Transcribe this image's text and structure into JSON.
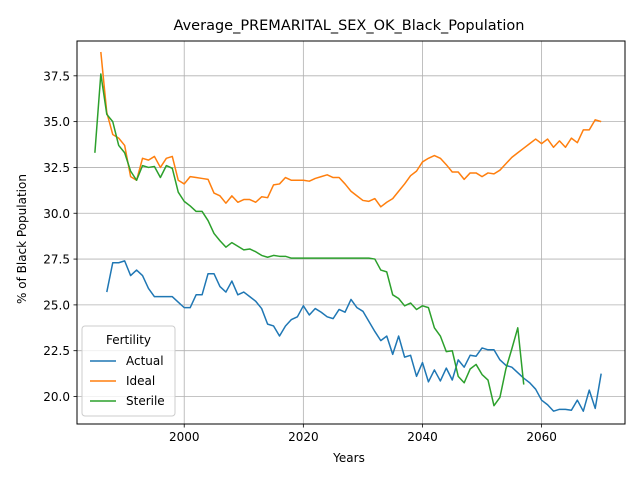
{
  "chart_data": {
    "type": "line",
    "title": "Average_PREMARITAL_SEX_OK_Black_Population",
    "xlabel": "Years",
    "ylabel": "% of Black Population",
    "xlim": [
      1982,
      2074
    ],
    "ylim": [
      18.5,
      39.4
    ],
    "xticks": [
      2000,
      2020,
      2040,
      2060
    ],
    "yticks": [
      20.0,
      22.5,
      25.0,
      27.5,
      30.0,
      32.5,
      35.0,
      37.5
    ],
    "grid": true,
    "legend": {
      "title": "Fertility",
      "placement": "lower-left"
    },
    "series": [
      {
        "name": "Actual",
        "color": "#1f77b4",
        "points": [
          [
            1987,
            25.7
          ],
          [
            1988,
            27.3
          ],
          [
            1989,
            27.3
          ],
          [
            1990,
            27.4
          ],
          [
            1991,
            26.6
          ],
          [
            1992,
            26.9
          ],
          [
            1993,
            26.6
          ],
          [
            1994,
            25.9
          ],
          [
            1995,
            25.45
          ],
          [
            1996,
            25.45
          ],
          [
            1997,
            25.45
          ],
          [
            1998,
            25.45
          ],
          [
            1999,
            25.15
          ],
          [
            2000,
            24.85
          ],
          [
            2001,
            24.85
          ],
          [
            2002,
            25.55
          ],
          [
            2003,
            25.55
          ],
          [
            2004,
            26.7
          ],
          [
            2005,
            26.7
          ],
          [
            2006,
            26.0
          ],
          [
            2007,
            25.7
          ],
          [
            2008,
            26.3
          ],
          [
            2009,
            25.55
          ],
          [
            2010,
            25.7
          ],
          [
            2011,
            25.45
          ],
          [
            2012,
            25.2
          ],
          [
            2013,
            24.8
          ],
          [
            2014,
            23.95
          ],
          [
            2015,
            23.85
          ],
          [
            2016,
            23.3
          ],
          [
            2017,
            23.85
          ],
          [
            2018,
            24.2
          ],
          [
            2019,
            24.35
          ],
          [
            2020,
            24.95
          ],
          [
            2021,
            24.45
          ],
          [
            2022,
            24.8
          ],
          [
            2023,
            24.6
          ],
          [
            2024,
            24.35
          ],
          [
            2025,
            24.25
          ],
          [
            2026,
            24.75
          ],
          [
            2027,
            24.6
          ],
          [
            2028,
            25.3
          ],
          [
            2029,
            24.85
          ],
          [
            2030,
            24.65
          ],
          [
            2031,
            24.1
          ],
          [
            2032,
            23.55
          ],
          [
            2033,
            23.05
          ],
          [
            2034,
            23.3
          ],
          [
            2035,
            22.3
          ],
          [
            2036,
            23.3
          ],
          [
            2037,
            22.15
          ],
          [
            2038,
            22.25
          ],
          [
            2039,
            21.1
          ],
          [
            2040,
            21.85
          ],
          [
            2041,
            20.8
          ],
          [
            2042,
            21.45
          ],
          [
            2043,
            20.85
          ],
          [
            2044,
            21.55
          ],
          [
            2045,
            20.9
          ],
          [
            2046,
            22.0
          ],
          [
            2047,
            21.6
          ],
          [
            2048,
            22.25
          ],
          [
            2049,
            22.2
          ],
          [
            2050,
            22.65
          ],
          [
            2051,
            22.55
          ],
          [
            2052,
            22.55
          ],
          [
            2053,
            22.0
          ],
          [
            2054,
            21.7
          ],
          [
            2055,
            21.6
          ],
          [
            2056,
            21.3
          ],
          [
            2057,
            21.0
          ],
          [
            2058,
            20.75
          ],
          [
            2059,
            20.4
          ],
          [
            2060,
            19.8
          ],
          [
            2061,
            19.55
          ],
          [
            2062,
            19.2
          ],
          [
            2063,
            19.3
          ],
          [
            2064,
            19.3
          ],
          [
            2065,
            19.25
          ],
          [
            2066,
            19.8
          ],
          [
            2067,
            19.2
          ],
          [
            2068,
            20.35
          ],
          [
            2069,
            19.35
          ],
          [
            2070,
            21.25
          ]
        ]
      },
      {
        "name": "Ideal",
        "color": "#ff7f0e",
        "points": [
          [
            1986,
            38.8
          ],
          [
            1987,
            35.5
          ],
          [
            1988,
            34.3
          ],
          [
            1989,
            34.1
          ],
          [
            1990,
            33.7
          ],
          [
            1991,
            32.0
          ],
          [
            1992,
            31.8
          ],
          [
            1993,
            33.0
          ],
          [
            1994,
            32.9
          ],
          [
            1995,
            33.1
          ],
          [
            1996,
            32.5
          ],
          [
            1997,
            33.0
          ],
          [
            1998,
            33.1
          ],
          [
            1999,
            31.8
          ],
          [
            2000,
            31.6
          ],
          [
            2001,
            32.0
          ],
          [
            2002,
            31.95
          ],
          [
            2003,
            31.9
          ],
          [
            2004,
            31.85
          ],
          [
            2005,
            31.1
          ],
          [
            2006,
            30.95
          ],
          [
            2007,
            30.55
          ],
          [
            2008,
            30.95
          ],
          [
            2009,
            30.6
          ],
          [
            2010,
            30.75
          ],
          [
            2011,
            30.75
          ],
          [
            2012,
            30.6
          ],
          [
            2013,
            30.9
          ],
          [
            2014,
            30.85
          ],
          [
            2015,
            31.55
          ],
          [
            2016,
            31.6
          ],
          [
            2017,
            31.95
          ],
          [
            2018,
            31.8
          ],
          [
            2019,
            31.8
          ],
          [
            2020,
            31.8
          ],
          [
            2021,
            31.75
          ],
          [
            2022,
            31.9
          ],
          [
            2023,
            32.0
          ],
          [
            2024,
            32.1
          ],
          [
            2025,
            31.95
          ],
          [
            2026,
            31.95
          ],
          [
            2027,
            31.6
          ],
          [
            2028,
            31.2
          ],
          [
            2029,
            30.95
          ],
          [
            2030,
            30.7
          ],
          [
            2031,
            30.65
          ],
          [
            2032,
            30.8
          ],
          [
            2033,
            30.35
          ],
          [
            2034,
            30.6
          ],
          [
            2035,
            30.8
          ],
          [
            2036,
            31.2
          ],
          [
            2037,
            31.6
          ],
          [
            2038,
            32.05
          ],
          [
            2039,
            32.3
          ],
          [
            2040,
            32.8
          ],
          [
            2041,
            33.0
          ],
          [
            2042,
            33.15
          ],
          [
            2043,
            33.0
          ],
          [
            2044,
            32.65
          ],
          [
            2045,
            32.25
          ],
          [
            2046,
            32.25
          ],
          [
            2047,
            31.85
          ],
          [
            2048,
            32.2
          ],
          [
            2049,
            32.2
          ],
          [
            2050,
            32.0
          ],
          [
            2051,
            32.2
          ],
          [
            2052,
            32.15
          ],
          [
            2053,
            32.35
          ],
          [
            2054,
            32.7
          ],
          [
            2055,
            33.05
          ],
          [
            2056,
            33.3
          ],
          [
            2057,
            33.55
          ],
          [
            2058,
            33.8
          ],
          [
            2059,
            34.05
          ],
          [
            2060,
            33.8
          ],
          [
            2061,
            34.05
          ],
          [
            2062,
            33.6
          ],
          [
            2063,
            33.95
          ],
          [
            2064,
            33.6
          ],
          [
            2065,
            34.1
          ],
          [
            2066,
            33.85
          ],
          [
            2067,
            34.55
          ],
          [
            2068,
            34.55
          ],
          [
            2069,
            35.1
          ],
          [
            2070,
            35.0
          ]
        ]
      },
      {
        "name": "Sterile",
        "color": "#2ca02c",
        "points": [
          [
            1985,
            33.3
          ],
          [
            1986,
            37.6
          ],
          [
            1987,
            35.4
          ],
          [
            1988,
            35.0
          ],
          [
            1989,
            33.7
          ],
          [
            1990,
            33.3
          ],
          [
            1991,
            32.3
          ],
          [
            1992,
            31.8
          ],
          [
            1993,
            32.6
          ],
          [
            1994,
            32.5
          ],
          [
            1995,
            32.55
          ],
          [
            1996,
            31.95
          ],
          [
            1997,
            32.6
          ],
          [
            1998,
            32.45
          ],
          [
            1999,
            31.15
          ],
          [
            2000,
            30.65
          ],
          [
            2001,
            30.4
          ],
          [
            2002,
            30.1
          ],
          [
            2003,
            30.1
          ],
          [
            2004,
            29.6
          ],
          [
            2005,
            28.9
          ],
          [
            2006,
            28.5
          ],
          [
            2007,
            28.15
          ],
          [
            2008,
            28.4
          ],
          [
            2009,
            28.2
          ],
          [
            2010,
            28.0
          ],
          [
            2011,
            28.05
          ],
          [
            2012,
            27.9
          ],
          [
            2013,
            27.7
          ],
          [
            2014,
            27.6
          ],
          [
            2015,
            27.7
          ],
          [
            2016,
            27.65
          ],
          [
            2017,
            27.65
          ],
          [
            2018,
            27.55
          ],
          [
            2019,
            27.55
          ],
          [
            2020,
            27.55
          ],
          [
            2021,
            27.55
          ],
          [
            2022,
            27.55
          ],
          [
            2023,
            27.55
          ],
          [
            2024,
            27.55
          ],
          [
            2025,
            27.55
          ],
          [
            2026,
            27.55
          ],
          [
            2027,
            27.55
          ],
          [
            2028,
            27.55
          ],
          [
            2029,
            27.55
          ],
          [
            2030,
            27.55
          ],
          [
            2031,
            27.55
          ],
          [
            2032,
            27.5
          ],
          [
            2033,
            26.9
          ],
          [
            2034,
            26.8
          ],
          [
            2035,
            25.55
          ],
          [
            2036,
            25.35
          ],
          [
            2037,
            24.95
          ],
          [
            2038,
            25.1
          ],
          [
            2039,
            24.75
          ],
          [
            2040,
            24.95
          ],
          [
            2041,
            24.85
          ],
          [
            2042,
            23.75
          ],
          [
            2043,
            23.3
          ],
          [
            2044,
            22.45
          ],
          [
            2045,
            22.5
          ],
          [
            2046,
            21.1
          ],
          [
            2047,
            20.75
          ],
          [
            2048,
            21.5
          ],
          [
            2049,
            21.75
          ],
          [
            2050,
            21.2
          ],
          [
            2051,
            20.9
          ],
          [
            2052,
            19.5
          ],
          [
            2053,
            19.95
          ],
          [
            2054,
            21.5
          ],
          [
            2055,
            22.6
          ],
          [
            2056,
            23.75
          ],
          [
            2057,
            20.65
          ]
        ]
      }
    ]
  }
}
